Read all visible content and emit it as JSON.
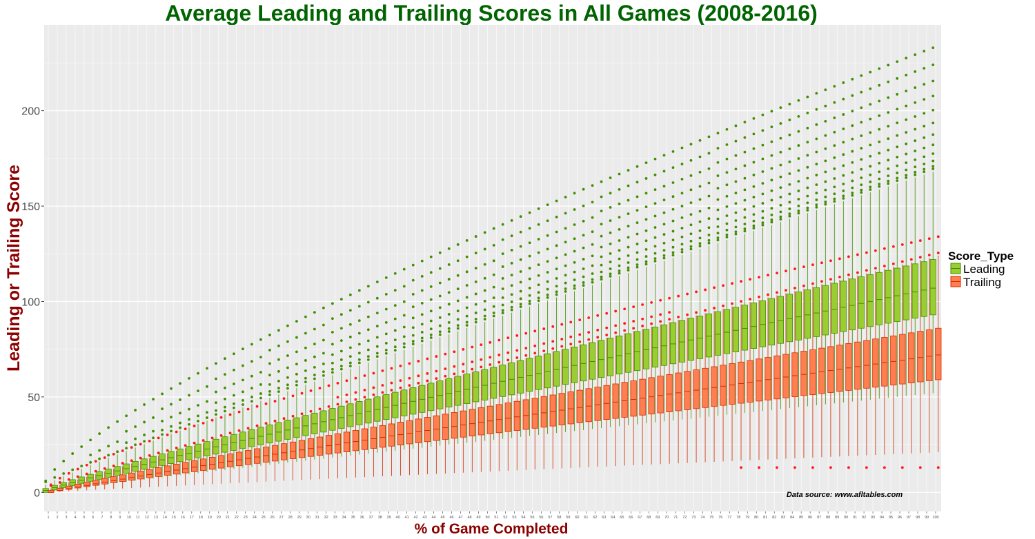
{
  "chart_data": {
    "type": "boxplot",
    "title": "Average Leading and Trailing Scores in All Games (2008-2016)",
    "xlabel": "% of Game Completed",
    "ylabel": "Leading or Trailing Score",
    "x_range": [
      1,
      100
    ],
    "ylim": [
      -10,
      245
    ],
    "y_ticks": [
      0,
      50,
      100,
      150,
      200
    ],
    "grid": true,
    "legend": {
      "title": "Score_Type",
      "placement": "right",
      "entries": [
        "Leading",
        "Trailing"
      ]
    },
    "annotation": "Data source: www.afltables.com",
    "series": [
      {
        "name": "Leading",
        "fill": "#9acd32",
        "stroke": "#3f8f00",
        "outlier_color": "#3f8f00",
        "median_start": 1,
        "median_end": 107,
        "q1_start": 0,
        "q1_end": 93,
        "q3_start": 2,
        "q3_end": 122,
        "whisker_low_start": 0,
        "whisker_low_end": 52,
        "whisker_high_start": 4,
        "whisker_high_end": 168,
        "outlier_max_start": 6,
        "outlier_max_end": 233
      },
      {
        "name": "Trailing",
        "fill": "#ff7f50",
        "stroke": "#d42a00",
        "outlier_color": "#ff1a1a",
        "median_start": 0,
        "median_end": 72,
        "q1_start": 0,
        "q1_end": 59,
        "q3_start": 1,
        "q3_end": 86,
        "whisker_low_start": 0,
        "whisker_low_end": 21,
        "whisker_high_start": 2,
        "whisker_high_end": 124,
        "outlier_max_start": 4,
        "outlier_max_end": 134,
        "outlier_min_end": 13
      }
    ]
  },
  "colors": {
    "panel_bg": "#ebebeb",
    "grid": "#ffffff",
    "title": "#006400",
    "axis_title": "#8b0000",
    "tick_text": "#4d4d4d"
  }
}
